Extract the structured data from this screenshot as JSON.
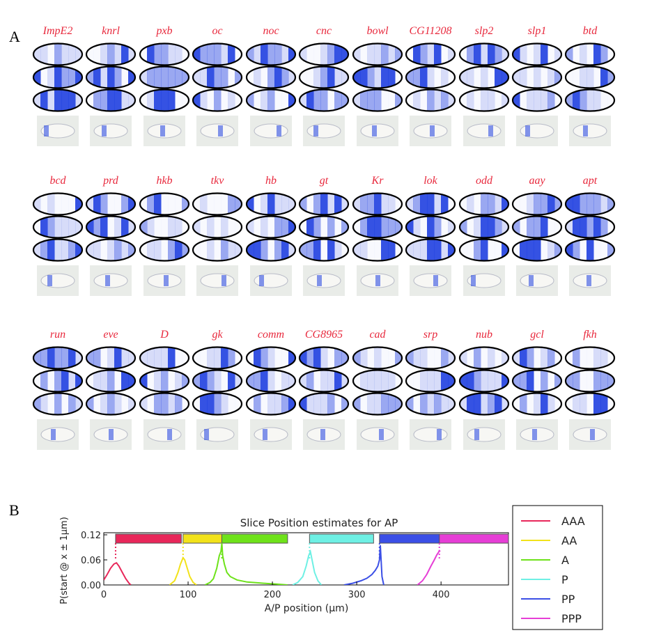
{
  "panel_labels": {
    "a": "A",
    "b": "B"
  },
  "genes": [
    [
      "ImpE2",
      "knrl",
      "pxb",
      "oc",
      "noc",
      "cnc",
      "bowl",
      "CG11208",
      "slp2",
      "slp1",
      "btd"
    ],
    [
      "bcd",
      "prd",
      "hkb",
      "tkv",
      "hb",
      "gt",
      "Kr",
      "lok",
      "odd",
      "aay",
      "apt"
    ],
    [
      "run",
      "eve",
      "D",
      "gk",
      "comm",
      "CG8965",
      "cad",
      "srp",
      "nub",
      "gcl",
      "fkh"
    ]
  ],
  "colors": {
    "gene_label": "#e8283c",
    "stain": "#1f3fe0",
    "AAA": "#e8275a",
    "AA": "#f2e21a",
    "A": "#6ee21a",
    "P": "#6ef0e4",
    "PP": "#3b4fe6",
    "PPP": "#e63ed6"
  },
  "chart_data": {
    "type": "line",
    "title": "Slice Position estimates for AP",
    "xlabel": "A/P position (μm)",
    "ylabel": "P(start @ x ± 1μm)",
    "xlim": [
      0,
      480
    ],
    "ylim": [
      0,
      0.125
    ],
    "xticks": [
      0,
      100,
      200,
      300,
      400
    ],
    "yticks": [
      0.0,
      0.06,
      0.12
    ],
    "ytick_labels": [
      "0.00",
      "0.06",
      "0.12"
    ],
    "xtick_labels": [
      "0",
      "100",
      "200",
      "300",
      "400"
    ],
    "legend": [
      "AAA",
      "AA",
      "A",
      "P",
      "PP",
      "PPP"
    ],
    "legend_position": "right",
    "slices": [
      {
        "name": "AAA",
        "start": 14,
        "end": 92
      },
      {
        "name": "AA",
        "start": 94,
        "end": 140
      },
      {
        "name": "A",
        "start": 140,
        "end": 218
      },
      {
        "name": "P",
        "start": 244,
        "end": 320
      },
      {
        "name": "PP",
        "start": 327,
        "end": 405
      },
      {
        "name": "PPP",
        "start": 398,
        "end": 480
      }
    ],
    "series": [
      {
        "name": "AAA",
        "x": [
          0,
          4,
          8,
          12,
          15,
          18,
          22,
          26,
          30,
          32
        ],
        "y": [
          0.012,
          0.025,
          0.04,
          0.05,
          0.053,
          0.045,
          0.03,
          0.015,
          0.004,
          0
        ]
      },
      {
        "name": "AA",
        "x": [
          78,
          84,
          88,
          91,
          94,
          96,
          99,
          102,
          106,
          110
        ],
        "y": [
          0,
          0.01,
          0.03,
          0.05,
          0.065,
          0.06,
          0.04,
          0.02,
          0.006,
          0
        ]
      },
      {
        "name": "A",
        "x": [
          120,
          126,
          130,
          134,
          137,
          139,
          140,
          141,
          143,
          146,
          150,
          158,
          170,
          190,
          205,
          218
        ],
        "y": [
          0,
          0.006,
          0.015,
          0.04,
          0.07,
          0.08,
          0.1,
          0.07,
          0.05,
          0.03,
          0.02,
          0.012,
          0.007,
          0.004,
          0.002,
          0
        ]
      },
      {
        "name": "P",
        "x": [
          224,
          230,
          236,
          240,
          243,
          245,
          247,
          250,
          254,
          258
        ],
        "y": [
          0,
          0.006,
          0.02,
          0.045,
          0.07,
          0.08,
          0.06,
          0.03,
          0.01,
          0
        ]
      },
      {
        "name": "PP",
        "x": [
          285,
          295,
          305,
          312,
          318,
          322,
          325,
          327,
          328,
          330,
          332
        ],
        "y": [
          0,
          0.004,
          0.01,
          0.016,
          0.025,
          0.035,
          0.045,
          0.06,
          0.095,
          0.02,
          0
        ]
      },
      {
        "name": "PPP",
        "x": [
          372,
          378,
          383,
          388,
          392,
          395,
          397,
          398,
          399
        ],
        "y": [
          0,
          0.01,
          0.025,
          0.045,
          0.06,
          0.072,
          0.078,
          0.082,
          0.08
        ]
      }
    ]
  }
}
